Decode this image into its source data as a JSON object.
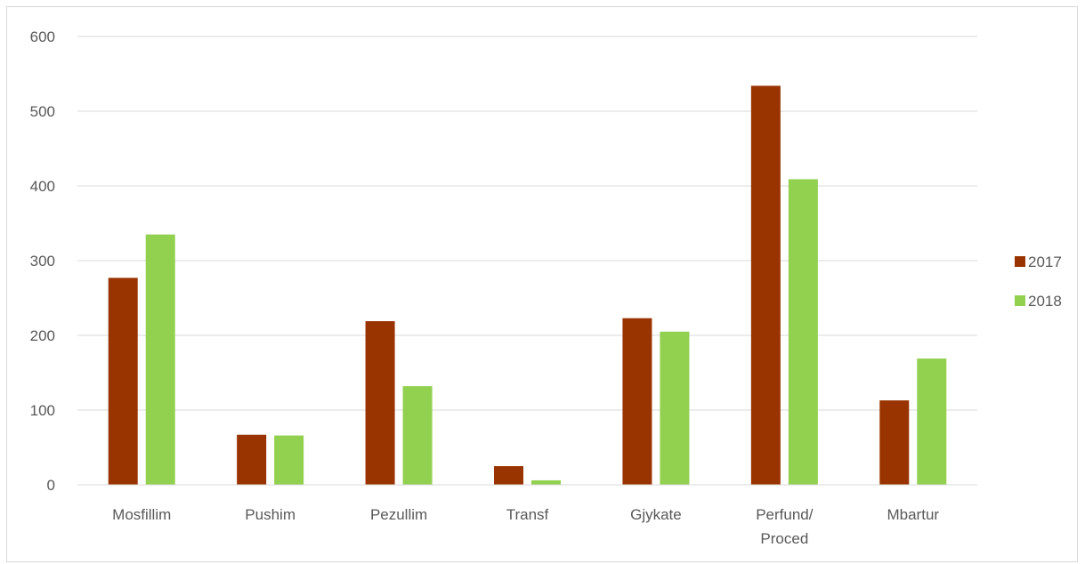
{
  "chart_data": {
    "type": "bar",
    "title": "",
    "xlabel": "",
    "ylabel": "",
    "ylim": [
      0,
      600
    ],
    "yticks": [
      0,
      100,
      200,
      300,
      400,
      500,
      600
    ],
    "grid": true,
    "legend_position": "right",
    "categories": [
      "Mosfillim",
      "Pushim",
      "Pezullim",
      "Transf",
      "Gjykate",
      "Perfund/ Proced",
      "Mbartur"
    ],
    "series": [
      {
        "name": "2017",
        "color": "#993300",
        "values": [
          277,
          67,
          219,
          25,
          223,
          534,
          113
        ]
      },
      {
        "name": "2018",
        "color": "#92d050",
        "values": [
          335,
          66,
          132,
          6,
          205,
          409,
          169
        ]
      }
    ]
  }
}
